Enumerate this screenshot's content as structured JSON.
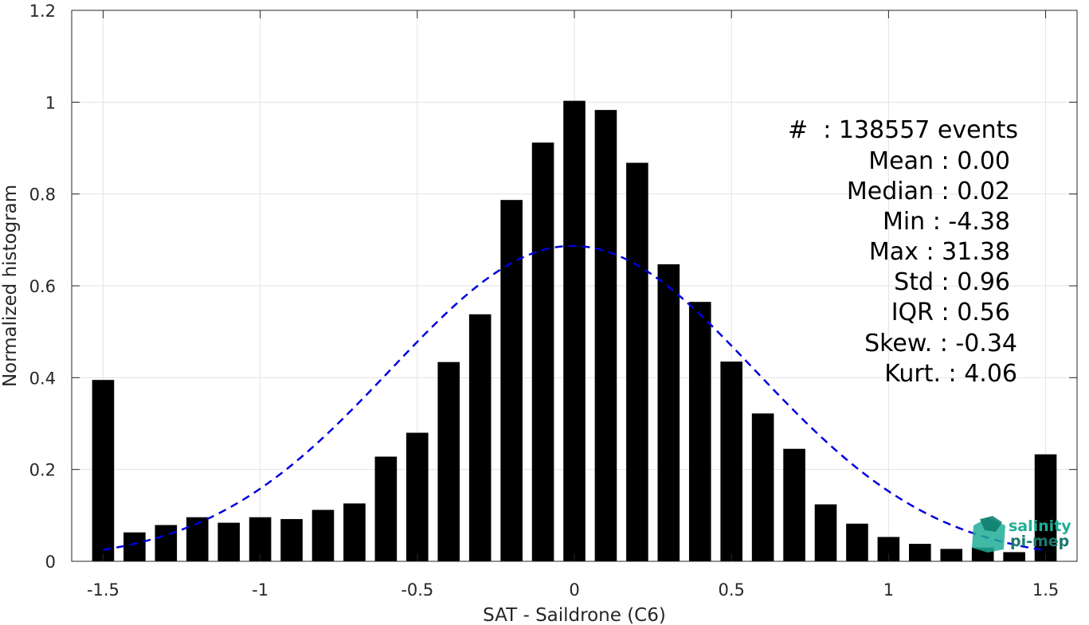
{
  "chart_data": {
    "type": "bar",
    "xlabel": "SAT - Saildrone (C6)",
    "ylabel": "Normalized histogram",
    "xlim": [
      -1.6,
      1.6
    ],
    "ylim": [
      0,
      1.2
    ],
    "xticks": [
      -1.5,
      -1,
      -0.5,
      0,
      0.5,
      1,
      1.5
    ],
    "xtick_labels": [
      "-1.5",
      "-1",
      "-0.5",
      "0",
      "0.5",
      "1",
      "1.5"
    ],
    "yticks": [
      0,
      0.2,
      0.4,
      0.6,
      0.8,
      1,
      1.2
    ],
    "ytick_labels": [
      "0",
      "0.2",
      "0.4",
      "0.6",
      "0.8",
      "1",
      "1.2"
    ],
    "grid": true,
    "bar_color": "#000000",
    "fit_color": "#0000dd",
    "x": [
      -1.5,
      -1.4,
      -1.3,
      -1.2,
      -1.1,
      -1.0,
      -0.9,
      -0.8,
      -0.7,
      -0.6,
      -0.5,
      -0.4,
      -0.3,
      -0.2,
      -0.1,
      0.0,
      0.1,
      0.2,
      0.3,
      0.4,
      0.5,
      0.6,
      0.7,
      0.8,
      0.9,
      1.0,
      1.1,
      1.2,
      1.3,
      1.4,
      1.5
    ],
    "values": [
      0.395,
      0.063,
      0.079,
      0.096,
      0.084,
      0.096,
      0.092,
      0.112,
      0.126,
      0.228,
      0.28,
      0.434,
      0.538,
      0.787,
      0.912,
      1.003,
      0.983,
      0.868,
      0.647,
      0.565,
      0.435,
      0.322,
      0.245,
      0.124,
      0.082,
      0.053,
      0.038,
      0.027,
      0.03,
      0.02,
      0.233
    ],
    "fit": {
      "style": "dashed",
      "mean": -0.006,
      "std": 0.58,
      "peak": 0.687,
      "x_range": [
        -1.5,
        1.5
      ]
    },
    "stats_lines": [
      "#  : 138557 events",
      "Mean : 0.00",
      "Median : 0.02",
      "Min : -4.38",
      "Max : 31.38",
      "Std : 0.96",
      "IQR : 0.56",
      "Skew. : -0.34",
      "Kurt. : 4.06"
    ]
  },
  "logo": {
    "line1": "salinity",
    "line2": "pi-mep"
  }
}
